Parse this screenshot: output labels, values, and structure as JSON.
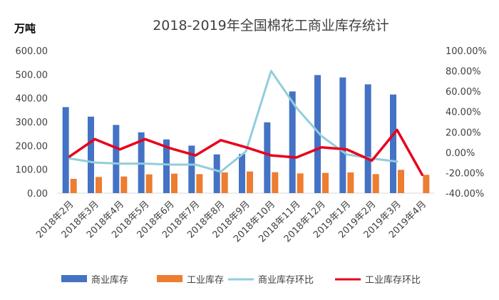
{
  "chart_data": {
    "type": "bar",
    "title": "2018-2019年全国棉花工商业库存统计",
    "unit_label": "万吨",
    "categories": [
      "2018年2月",
      "2018年3月",
      "2018年4月",
      "2018年5月",
      "2018年6月",
      "2018年7月",
      "2018年8月",
      "2018年9月",
      "2018年10月",
      "2018年11月",
      "2018年12月",
      "2019年1月",
      "2019年2月",
      "2019年3月",
      "2019年4月"
    ],
    "y_left": {
      "min": 0,
      "max": 600,
      "ticks": [
        "0.00",
        "100.00",
        "200.00",
        "300.00",
        "400.00",
        "500.00",
        "600.00"
      ]
    },
    "y_right": {
      "min": -40,
      "max": 100,
      "ticks": [
        "-40.00%",
        "-20.00%",
        "0.00%",
        "20.00%",
        "40.00%",
        "60.00%",
        "80.00%",
        "100.00%"
      ]
    },
    "series": [
      {
        "name": "商业库存",
        "kind": "bar",
        "axis": "left",
        "color": "#4472C4",
        "values": [
          362,
          322,
          287,
          256,
          226,
          200,
          163,
          165,
          298,
          428,
          497,
          487,
          458,
          415,
          null
        ]
      },
      {
        "name": "工业库存",
        "kind": "bar",
        "axis": "left",
        "color": "#ED7D31",
        "values": [
          60,
          68,
          70,
          79,
          82,
          80,
          87,
          91,
          88,
          83,
          85,
          87,
          80,
          98,
          77
        ]
      },
      {
        "name": "商业库存环比",
        "kind": "line",
        "axis": "right",
        "color": "#92CDDC",
        "values": [
          -6,
          -10,
          -11,
          -11,
          -12,
          -12,
          -19,
          1,
          80,
          44,
          16,
          -2,
          -6,
          -9,
          null
        ]
      },
      {
        "name": "工业库存环比",
        "kind": "line",
        "axis": "right",
        "color": "#E8001C",
        "values": [
          -4,
          13,
          3,
          13,
          4,
          -3,
          12,
          5,
          -3,
          -5,
          5,
          3,
          -8,
          22,
          -22
        ]
      }
    ],
    "legend_position": "bottom",
    "grid": false
  }
}
